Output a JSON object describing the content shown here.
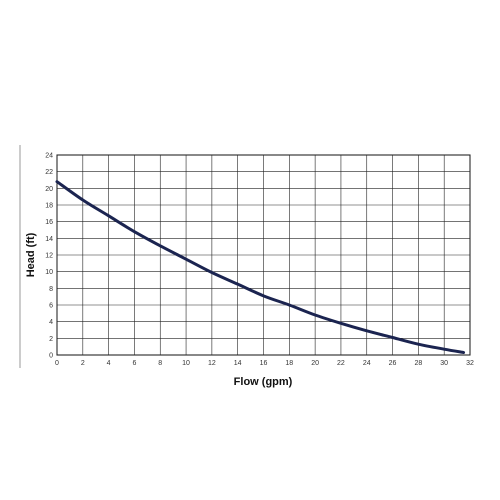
{
  "chart_data": {
    "type": "line",
    "xlabel": "Flow (gpm)",
    "ylabel": "Head (ft)",
    "xlim": [
      0,
      32
    ],
    "ylim": [
      0,
      24
    ],
    "x_ticks": [
      "0",
      "2",
      "4",
      "6",
      "8",
      "10",
      "12",
      "14",
      "16",
      "18",
      "20",
      "22",
      "24",
      "26",
      "28",
      "30",
      "32"
    ],
    "y_ticks": [
      "0",
      "2",
      "4",
      "6",
      "8",
      "10",
      "12",
      "14",
      "16",
      "18",
      "20",
      "22",
      "24"
    ],
    "grid": true,
    "line_color": "#1b2450",
    "series": [
      {
        "x": [
          0,
          2,
          4,
          6,
          8,
          10,
          12,
          14,
          16,
          18,
          20,
          22,
          24,
          26,
          28,
          30,
          31.5
        ],
        "y": [
          20.8,
          18.6,
          16.7,
          14.8,
          13.1,
          11.5,
          9.9,
          8.5,
          7.1,
          6.0,
          4.8,
          3.8,
          2.9,
          2.1,
          1.3,
          0.7,
          0.3
        ]
      }
    ]
  }
}
